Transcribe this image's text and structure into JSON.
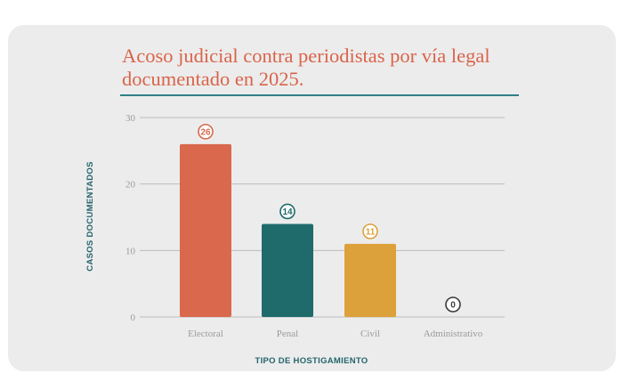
{
  "chart_data": {
    "type": "bar",
    "title": "Acoso judicial contra periodistas por vía legal documentado en 2025.",
    "xlabel": "TIPO DE HOSTIGAMIENTO",
    "ylabel": "CASOS DOCUMENTADOS",
    "categories": [
      "Electoral",
      "Penal",
      "Civil",
      "Administrativo"
    ],
    "values": [
      26,
      14,
      11,
      0
    ],
    "value_labels": [
      "26",
      "14",
      "11",
      "0"
    ],
    "colors": [
      "#d9684d",
      "#1f6b6b",
      "#dca13a",
      "#3a3a3a"
    ],
    "ylim": [
      0,
      30
    ],
    "yticks": [
      "0",
      "10",
      "20",
      "30"
    ],
    "grid": true
  }
}
